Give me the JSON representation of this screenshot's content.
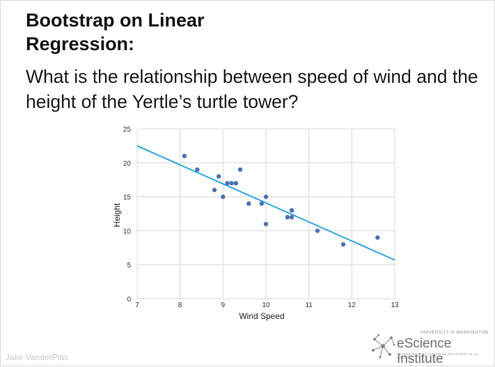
{
  "slide": {
    "title": "Bootstrap on Linear Regression:",
    "question": "What is the relationship between speed of wind and the height of the Yertle’s turtle tower?",
    "author": "Jake VanderPlas",
    "logo": {
      "university": "UNIVERSITY of WASHINGTON",
      "name": "eScience Institute",
      "tagline": "ADVANCING DATA-INTENSIVE DISCOVERY IN ALL FIELDS",
      "icon": "network-nodes-icon"
    }
  },
  "chart_data": {
    "type": "scatter",
    "title": "",
    "xlabel": "Wind Speed",
    "ylabel": "Height",
    "xlim": [
      7,
      13
    ],
    "ylim": [
      0,
      25
    ],
    "xticks": [
      7,
      8,
      9,
      10,
      11,
      12,
      13
    ],
    "yticks": [
      0,
      5,
      10,
      15,
      20,
      25
    ],
    "grid": true,
    "colors": {
      "points": "#4c72b0",
      "line": "#2fa6e0",
      "grid": "#d9d9d9"
    },
    "points": [
      {
        "x": 8.1,
        "y": 21
      },
      {
        "x": 8.4,
        "y": 19
      },
      {
        "x": 8.8,
        "y": 16
      },
      {
        "x": 8.9,
        "y": 18
      },
      {
        "x": 9.0,
        "y": 15
      },
      {
        "x": 9.1,
        "y": 17
      },
      {
        "x": 9.2,
        "y": 17
      },
      {
        "x": 9.3,
        "y": 17
      },
      {
        "x": 9.4,
        "y": 19
      },
      {
        "x": 9.6,
        "y": 14
      },
      {
        "x": 9.9,
        "y": 14
      },
      {
        "x": 10.0,
        "y": 15
      },
      {
        "x": 10.0,
        "y": 11
      },
      {
        "x": 10.5,
        "y": 12
      },
      {
        "x": 10.6,
        "y": 13
      },
      {
        "x": 10.6,
        "y": 12
      },
      {
        "x": 11.2,
        "y": 10
      },
      {
        "x": 11.8,
        "y": 8
      },
      {
        "x": 12.6,
        "y": 9
      }
    ],
    "fit_line": {
      "x": [
        7,
        13
      ],
      "y": [
        22.5,
        5.7
      ]
    }
  }
}
